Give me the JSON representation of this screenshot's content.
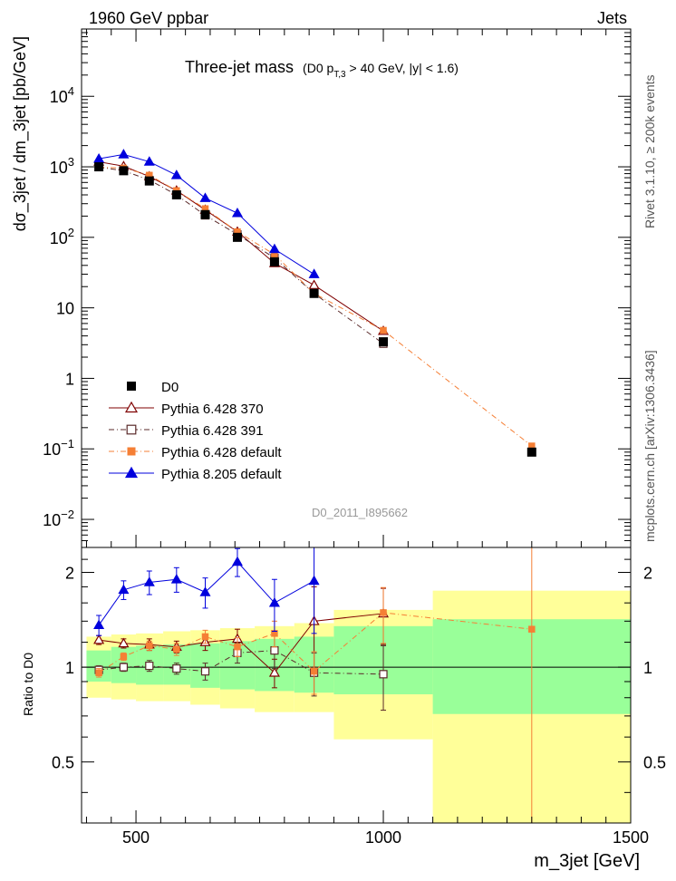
{
  "header": {
    "left": "1960 GeV ppbar",
    "right": "Jets",
    "side_top": "Rivet 3.1.10, ≥ 200k events",
    "side_bottom": "mcplots.cern.ch [arXiv:1306.3436]"
  },
  "chart_data": {
    "type": "line",
    "title_main": "Three-jet mass",
    "title_cond_pre": "(D0 p",
    "title_cond_sub": "T,3",
    "title_cond_post": " > 40 GeV, |y| < 1.6)",
    "xlabel": "m_3jet [GeV]",
    "ylabel": "dσ_3jet / dm_3jet [pb/GeV]",
    "ratio_ylabel": "Ratio to D0",
    "watermark": "D0_2011_I895662",
    "xlim": [
      390,
      1500
    ],
    "ylim_log": [
      0.004,
      90000
    ],
    "ratio_ylim": [
      0.32,
      2.4
    ],
    "x_ticks": [
      500,
      1000,
      1500
    ],
    "y_ticks": [
      {
        "v": 10000,
        "b": "10",
        "e": "4"
      },
      {
        "v": 1000,
        "b": "10",
        "e": "3"
      },
      {
        "v": 100,
        "b": "10",
        "e": "2"
      },
      {
        "v": 10,
        "b": "10",
        "e": ""
      },
      {
        "v": 1,
        "b": "1",
        "e": ""
      },
      {
        "v": 0.1,
        "b": "10",
        "e": "−1"
      },
      {
        "v": 0.01,
        "b": "10",
        "e": "−2"
      }
    ],
    "ratio_ticks": [
      {
        "v": 2,
        "t": "2"
      },
      {
        "v": 1,
        "t": "1"
      },
      {
        "v": 0.5,
        "t": "0.5"
      }
    ],
    "bins": [
      [
        400,
        450
      ],
      [
        450,
        500
      ],
      [
        500,
        555
      ],
      [
        555,
        610
      ],
      [
        610,
        670
      ],
      [
        670,
        740
      ],
      [
        740,
        820
      ],
      [
        820,
        900
      ],
      [
        900,
        1100
      ],
      [
        1100,
        1500
      ]
    ],
    "band_inner": [
      [
        0.9,
        1.13
      ],
      [
        0.89,
        1.16
      ],
      [
        0.88,
        1.17
      ],
      [
        0.88,
        1.18
      ],
      [
        0.86,
        1.19
      ],
      [
        0.85,
        1.21
      ],
      [
        0.84,
        1.23
      ],
      [
        0.83,
        1.25
      ],
      [
        0.82,
        1.35
      ],
      [
        0.71,
        1.42
      ]
    ],
    "band_outer": [
      [
        0.8,
        1.25
      ],
      [
        0.79,
        1.27
      ],
      [
        0.78,
        1.28
      ],
      [
        0.78,
        1.3
      ],
      [
        0.76,
        1.31
      ],
      [
        0.74,
        1.33
      ],
      [
        0.72,
        1.35
      ],
      [
        0.72,
        1.38
      ],
      [
        0.59,
        1.52
      ],
      [
        0.32,
        1.75
      ]
    ],
    "data": {
      "name": "D0",
      "x": [
        425,
        475,
        527,
        582,
        640,
        705,
        780,
        860,
        1000,
        1300
      ],
      "y": [
        1000,
        880,
        630,
        400,
        210,
        100,
        45,
        16,
        3.3,
        0.09
      ]
    },
    "series": [
      {
        "name": "Pythia 6.428 370",
        "color": "#7f0000",
        "marker": "tri-open",
        "dash": "",
        "x": [
          425,
          475,
          527,
          582,
          640,
          705,
          780,
          860,
          1000
        ],
        "y": [
          1180,
          1020,
          730,
          460,
          245,
          120,
          43,
          21,
          4.7
        ],
        "ratio": [
          1.22,
          1.19,
          1.18,
          1.16,
          1.2,
          1.23,
          0.96,
          1.4,
          1.48
        ],
        "ratio_err": [
          0.04,
          0.04,
          0.05,
          0.05,
          0.07,
          0.09,
          0.1,
          0.4,
          0.3
        ]
      },
      {
        "name": "Pythia 6.428 391",
        "color": "#5a2a2a",
        "marker": "sq-open",
        "dash": "6,3,1,3",
        "x": [
          425,
          475,
          527,
          582,
          640,
          705,
          780,
          860,
          1000
        ],
        "y": [
          990,
          880,
          650,
          400,
          205,
          110,
          51,
          16,
          3.1
        ],
        "ratio": [
          0.98,
          1.0,
          1.01,
          0.99,
          0.97,
          1.11,
          1.13,
          0.96,
          0.95
        ],
        "ratio_err": [
          0.03,
          0.03,
          0.04,
          0.04,
          0.06,
          0.08,
          0.14,
          0.15,
          0.22
        ]
      },
      {
        "name": "Pythia 6.428 default",
        "color": "#f57f35",
        "marker": "sq-fill",
        "dash": "6,3,1,3",
        "x": [
          425,
          475,
          527,
          582,
          640,
          705,
          780,
          860,
          1000,
          1300
        ],
        "y": [
          990,
          960,
          760,
          460,
          255,
          120,
          57,
          16,
          4.8,
          0.11
        ],
        "ratio": [
          0.96,
          1.08,
          1.17,
          1.14,
          1.25,
          1.16,
          1.28,
          0.97,
          1.49,
          1.32
        ],
        "ratio_err": [
          0.03,
          0.03,
          0.04,
          0.05,
          0.06,
          0.08,
          0.12,
          0.15,
          0.3,
          1.1
        ]
      },
      {
        "name": "Pythia 8.205 default",
        "color": "#0000dd",
        "marker": "tri-fill",
        "dash": "",
        "x": [
          425,
          475,
          527,
          582,
          640,
          705,
          780,
          860
        ],
        "y": [
          1300,
          1500,
          1180,
          760,
          360,
          220,
          68,
          30
        ],
        "ratio": [
          1.36,
          1.76,
          1.86,
          1.9,
          1.73,
          2.16,
          1.6,
          1.88
        ],
        "ratio_err": [
          0.1,
          0.12,
          0.16,
          0.17,
          0.19,
          0.22,
          0.3,
          0.6
        ]
      }
    ]
  }
}
